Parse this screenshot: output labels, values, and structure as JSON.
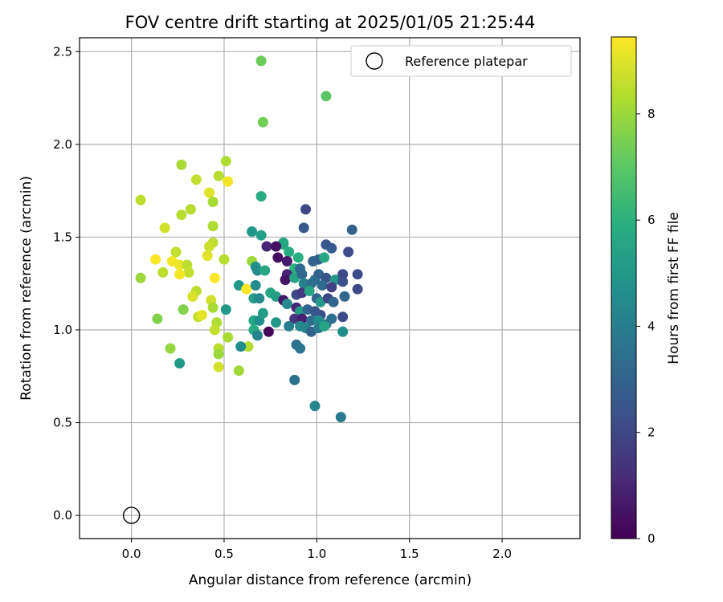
{
  "chart_data": {
    "type": "scatter",
    "title": "FOV centre drift starting at 2025/01/05 21:25:44",
    "xlabel": "Angular distance from reference (arcmin)",
    "ylabel": "Rotation from reference (arcmin)",
    "xlim": [
      -0.28,
      2.42
    ],
    "ylim": [
      -0.125,
      2.575
    ],
    "xticks": [
      0.0,
      0.5,
      1.0,
      1.5,
      2.0
    ],
    "xtick_labels": [
      "0.0",
      "0.5",
      "1.0",
      "1.5",
      "2.0"
    ],
    "yticks": [
      0.0,
      0.5,
      1.0,
      1.5,
      2.0,
      2.5
    ],
    "ytick_labels": [
      "0.0",
      "0.5",
      "1.0",
      "1.5",
      "2.0",
      "2.5"
    ],
    "grid": true,
    "legend": {
      "location": "upper-right",
      "entries": [
        "Reference platepar"
      ]
    },
    "reference_point": {
      "name": "Reference platepar",
      "x": 0.0,
      "y": 0.0
    },
    "colorbar": {
      "label": "Hours from first FF file",
      "range": [
        0,
        9.45
      ],
      "ticks": [
        0,
        2,
        4,
        6,
        8
      ],
      "tick_labels": [
        "0",
        "2",
        "4",
        "6",
        "8"
      ],
      "colormap": "viridis"
    },
    "points": [
      [
        0.7,
        2.45,
        7.3
      ],
      [
        1.05,
        2.26,
        7.0
      ],
      [
        0.71,
        2.12,
        7.4
      ],
      [
        0.51,
        1.91,
        8.3
      ],
      [
        0.27,
        1.89,
        8.2
      ],
      [
        0.47,
        1.83,
        8.4
      ],
      [
        0.35,
        1.81,
        8.6
      ],
      [
        0.52,
        1.8,
        9.3
      ],
      [
        0.42,
        1.74,
        9.0
      ],
      [
        0.05,
        1.7,
        8.5
      ],
      [
        0.44,
        1.69,
        8.2
      ],
      [
        0.7,
        1.72,
        5.8
      ],
      [
        0.32,
        1.65,
        8.4
      ],
      [
        0.27,
        1.62,
        8.4
      ],
      [
        0.94,
        1.65,
        2.0
      ],
      [
        0.18,
        1.55,
        8.8
      ],
      [
        0.44,
        1.56,
        8.3
      ],
      [
        0.93,
        1.55,
        2.6
      ],
      [
        1.19,
        1.54,
        3.0
      ],
      [
        0.65,
        1.53,
        5.0
      ],
      [
        0.7,
        1.51,
        5.3
      ],
      [
        0.44,
        1.47,
        8.5
      ],
      [
        0.42,
        1.45,
        8.7
      ],
      [
        0.82,
        1.46,
        6.1
      ],
      [
        0.82,
        1.47,
        5.6
      ],
      [
        0.73,
        1.45,
        1.0
      ],
      [
        0.78,
        1.45,
        0.4
      ],
      [
        1.05,
        1.46,
        2.6
      ],
      [
        1.08,
        1.44,
        2.7
      ],
      [
        1.17,
        1.42,
        2.2
      ],
      [
        0.24,
        1.42,
        8.6
      ],
      [
        0.41,
        1.4,
        9.0
      ],
      [
        0.85,
        1.42,
        5.8
      ],
      [
        0.9,
        1.39,
        5.9
      ],
      [
        0.79,
        1.39,
        0.3
      ],
      [
        0.13,
        1.38,
        9.4
      ],
      [
        0.22,
        1.37,
        9.3
      ],
      [
        0.5,
        1.38,
        8.4
      ],
      [
        0.65,
        1.37,
        8.0
      ],
      [
        0.67,
        1.34,
        4.7
      ],
      [
        0.84,
        1.37,
        0.7
      ],
      [
        0.88,
        1.33,
        6.0
      ],
      [
        0.91,
        1.33,
        3.2
      ],
      [
        0.98,
        1.37,
        3.0
      ],
      [
        1.01,
        1.38,
        2.9
      ],
      [
        1.04,
        1.39,
        5.6
      ],
      [
        0.26,
        1.35,
        9.2
      ],
      [
        0.3,
        1.35,
        8.5
      ],
      [
        0.31,
        1.31,
        8.6
      ],
      [
        0.17,
        1.31,
        8.5
      ],
      [
        0.05,
        1.28,
        8.0
      ],
      [
        0.26,
        1.3,
        9.3
      ],
      [
        0.45,
        1.28,
        9.4
      ],
      [
        0.68,
        1.32,
        4.5
      ],
      [
        0.72,
        1.32,
        5.6
      ],
      [
        0.84,
        1.3,
        1.0
      ],
      [
        0.83,
        1.27,
        0.5
      ],
      [
        0.88,
        1.28,
        5.6
      ],
      [
        0.92,
        1.3,
        3.2
      ],
      [
        0.99,
        1.27,
        3.5
      ],
      [
        1.01,
        1.3,
        3.0
      ],
      [
        1.05,
        1.28,
        2.5
      ],
      [
        1.1,
        1.27,
        5.0
      ],
      [
        1.14,
        1.3,
        2.1
      ],
      [
        1.22,
        1.3,
        2.2
      ],
      [
        0.58,
        1.24,
        5.0
      ],
      [
        0.62,
        1.22,
        9.4
      ],
      [
        0.67,
        1.24,
        4.5
      ],
      [
        0.35,
        1.21,
        8.5
      ],
      [
        0.93,
        1.25,
        4.2
      ],
      [
        0.97,
        1.25,
        3.4
      ],
      [
        1.03,
        1.24,
        3.2
      ],
      [
        1.08,
        1.23,
        1.8
      ],
      [
        1.14,
        1.26,
        2.3
      ],
      [
        1.22,
        1.22,
        2.1
      ],
      [
        0.33,
        1.18,
        8.9
      ],
      [
        0.43,
        1.16,
        8.8
      ],
      [
        0.66,
        1.17,
        5.3
      ],
      [
        0.69,
        1.17,
        4.4
      ],
      [
        0.75,
        1.2,
        5.6
      ],
      [
        0.78,
        1.18,
        5.3
      ],
      [
        0.82,
        1.16,
        0.6
      ],
      [
        0.89,
        1.19,
        2.1
      ],
      [
        0.92,
        1.2,
        1.6
      ],
      [
        0.96,
        1.21,
        5.5
      ],
      [
        1.0,
        1.17,
        3.0
      ],
      [
        1.02,
        1.15,
        5.0
      ],
      [
        1.06,
        1.17,
        2.0
      ],
      [
        1.09,
        1.15,
        3.1
      ],
      [
        1.15,
        1.18,
        3.1
      ],
      [
        0.28,
        1.11,
        7.6
      ],
      [
        0.44,
        1.12,
        8.2
      ],
      [
        0.51,
        1.11,
        5.1
      ],
      [
        0.36,
        1.07,
        8.6
      ],
      [
        0.38,
        1.08,
        9.1
      ],
      [
        0.14,
        1.06,
        7.6
      ],
      [
        0.66,
        1.05,
        5.6
      ],
      [
        0.69,
        1.05,
        4.7
      ],
      [
        0.71,
        1.09,
        5.2
      ],
      [
        0.78,
        1.04,
        5.0
      ],
      [
        0.84,
        1.14,
        4.4
      ],
      [
        0.89,
        1.12,
        1.0
      ],
      [
        0.91,
        1.1,
        5.2
      ],
      [
        0.95,
        1.11,
        3.1
      ],
      [
        0.99,
        1.1,
        2.5
      ],
      [
        1.02,
        1.08,
        2.3
      ],
      [
        0.88,
        1.06,
        1.5
      ],
      [
        0.92,
        1.06,
        0.8
      ],
      [
        0.97,
        1.05,
        3.4
      ],
      [
        1.01,
        1.05,
        4.6
      ],
      [
        1.05,
        1.03,
        3.9
      ],
      [
        1.08,
        1.06,
        3.4
      ],
      [
        1.14,
        1.07,
        2.1
      ],
      [
        0.46,
        1.04,
        8.3
      ],
      [
        0.45,
        1.0,
        8.6
      ],
      [
        0.66,
        1.0,
        5.8
      ],
      [
        0.68,
        0.97,
        4.2
      ],
      [
        0.74,
        0.99,
        0.2
      ],
      [
        0.85,
        1.02,
        4.0
      ],
      [
        0.91,
        1.02,
        4.5
      ],
      [
        0.94,
        1.01,
        4.3
      ],
      [
        0.97,
        0.99,
        3.0
      ],
      [
        1.01,
        1.01,
        3.8
      ],
      [
        1.04,
        1.02,
        5.5
      ],
      [
        1.14,
        0.99,
        4.6
      ],
      [
        0.52,
        0.96,
        8.2
      ],
      [
        0.47,
        0.9,
        8.5
      ],
      [
        0.47,
        0.87,
        8.0
      ],
      [
        0.63,
        0.91,
        8.4
      ],
      [
        0.59,
        0.91,
        4.6
      ],
      [
        0.89,
        0.92,
        3.4
      ],
      [
        0.91,
        0.9,
        3.7
      ],
      [
        0.21,
        0.9,
        7.9
      ],
      [
        0.26,
        0.82,
        5.0
      ],
      [
        0.47,
        0.8,
        8.8
      ],
      [
        0.58,
        0.78,
        8.1
      ],
      [
        0.88,
        0.73,
        3.5
      ],
      [
        0.99,
        0.59,
        4.3
      ],
      [
        1.13,
        0.53,
        3.8
      ]
    ]
  }
}
